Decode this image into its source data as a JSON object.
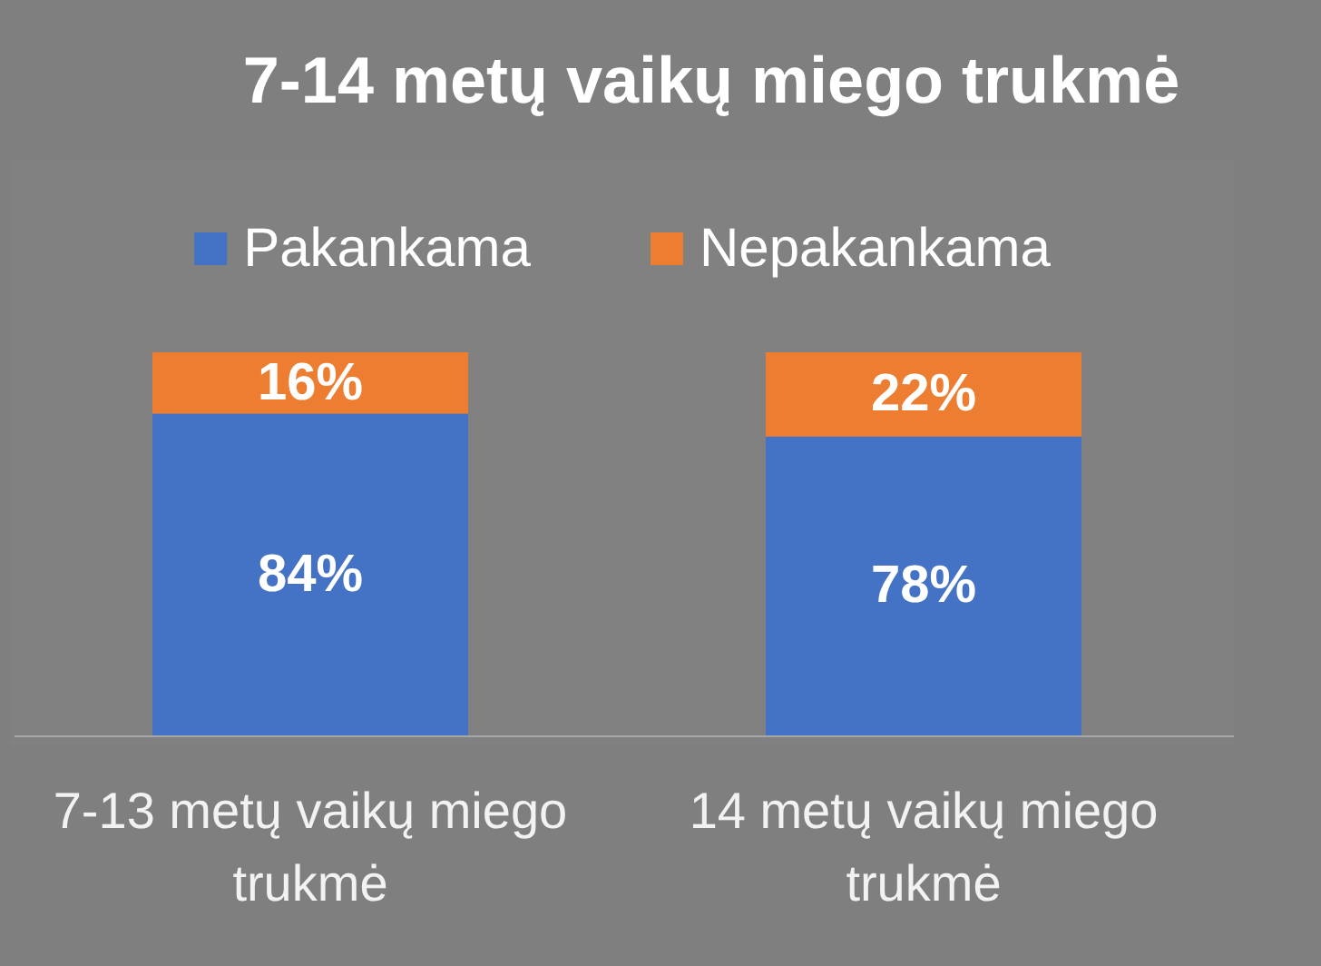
{
  "chart_data": {
    "type": "bar",
    "title": "7-14 metų vaikų miego trukmė",
    "categories": [
      "7-13 metų vaikų miego trukmė",
      "14 metų vaikų miego trukmė"
    ],
    "stacked": true,
    "series": [
      {
        "name": "Pakankama",
        "color": "#4472c4",
        "values": [
          84,
          78
        ],
        "value_labels": [
          "84%",
          "78%"
        ]
      },
      {
        "name": "Nepakankama",
        "color": "#ed7d31",
        "values": [
          16,
          22
        ],
        "value_labels": [
          "16%",
          "22%"
        ]
      }
    ],
    "legend": "top",
    "tick_labels": "x"
  }
}
